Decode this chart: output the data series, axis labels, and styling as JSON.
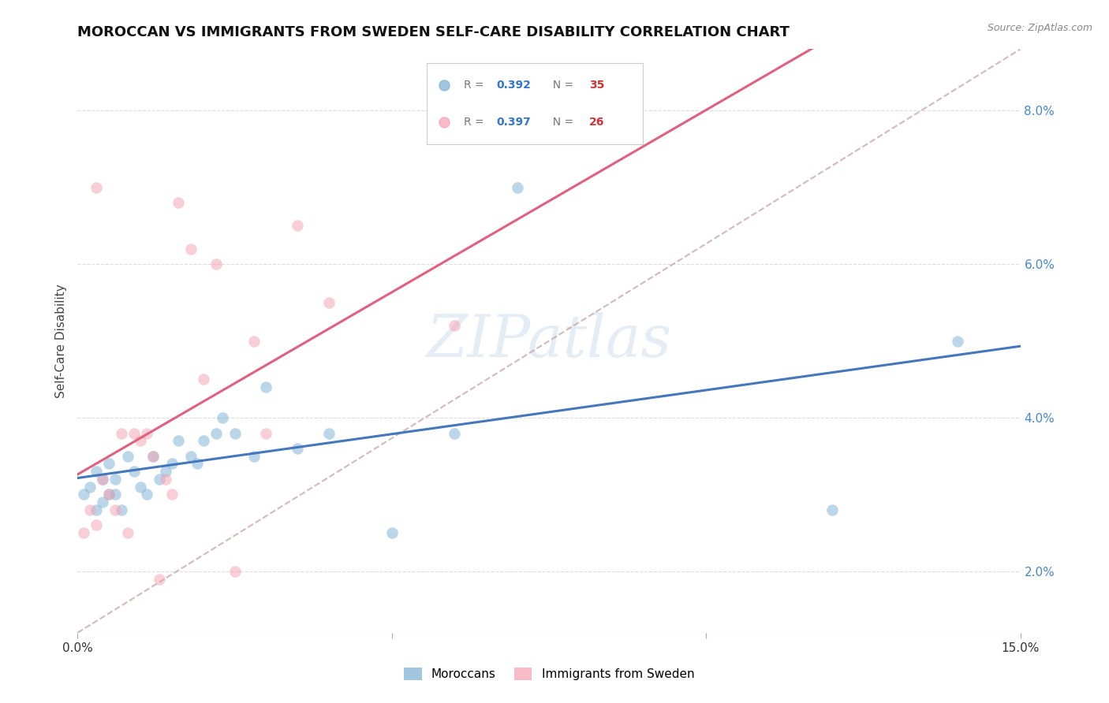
{
  "title": "MOROCCAN VS IMMIGRANTS FROM SWEDEN SELF-CARE DISABILITY CORRELATION CHART",
  "source": "Source: ZipAtlas.com",
  "ylabel": "Self-Care Disability",
  "watermark": "ZIPatlas",
  "moroccan_x": [
    0.001,
    0.002,
    0.003,
    0.003,
    0.004,
    0.004,
    0.005,
    0.005,
    0.006,
    0.006,
    0.007,
    0.008,
    0.009,
    0.01,
    0.011,
    0.012,
    0.013,
    0.014,
    0.015,
    0.016,
    0.018,
    0.019,
    0.02,
    0.022,
    0.023,
    0.025,
    0.028,
    0.03,
    0.035,
    0.04,
    0.05,
    0.06,
    0.07,
    0.12,
    0.14
  ],
  "moroccan_y": [
    0.03,
    0.031,
    0.028,
    0.033,
    0.029,
    0.032,
    0.03,
    0.034,
    0.03,
    0.032,
    0.028,
    0.035,
    0.033,
    0.031,
    0.03,
    0.035,
    0.032,
    0.033,
    0.034,
    0.037,
    0.035,
    0.034,
    0.037,
    0.038,
    0.04,
    0.038,
    0.035,
    0.044,
    0.036,
    0.038,
    0.025,
    0.038,
    0.07,
    0.028,
    0.05
  ],
  "sweden_x": [
    0.001,
    0.002,
    0.003,
    0.003,
    0.004,
    0.005,
    0.006,
    0.007,
    0.008,
    0.009,
    0.01,
    0.011,
    0.012,
    0.013,
    0.014,
    0.015,
    0.016,
    0.018,
    0.02,
    0.022,
    0.025,
    0.028,
    0.03,
    0.035,
    0.04,
    0.06
  ],
  "sweden_y": [
    0.025,
    0.028,
    0.026,
    0.07,
    0.032,
    0.03,
    0.028,
    0.038,
    0.025,
    0.038,
    0.037,
    0.038,
    0.035,
    0.019,
    0.032,
    0.03,
    0.068,
    0.062,
    0.045,
    0.06,
    0.02,
    0.05,
    0.038,
    0.065,
    0.055,
    0.052
  ],
  "xlim": [
    0.0,
    0.15
  ],
  "ylim": [
    0.012,
    0.088
  ],
  "yticks": [
    0.02,
    0.04,
    0.06,
    0.08
  ],
  "ytick_labels": [
    "2.0%",
    "4.0%",
    "6.0%",
    "8.0%"
  ],
  "moroccan_color": "#7bafd4",
  "sweden_color": "#f4a0b0",
  "moroccan_line_color": "#4477bb",
  "sweden_line_color": "#e06080",
  "diagonal_color": "#c8a8a8",
  "background_color": "#ffffff",
  "grid_color": "#dddddd",
  "title_fontsize": 13,
  "axis_label_fontsize": 11,
  "tick_fontsize": 11,
  "source_fontsize": 9,
  "marker_size": 110,
  "marker_alpha": 0.5,
  "R_moroccan": "0.392",
  "N_moroccan": "35",
  "R_sweden": "0.397",
  "N_sweden": "26",
  "legend_label1_moroccans": "Moroccans",
  "legend_label2_sweden": "Immigrants from Sweden"
}
